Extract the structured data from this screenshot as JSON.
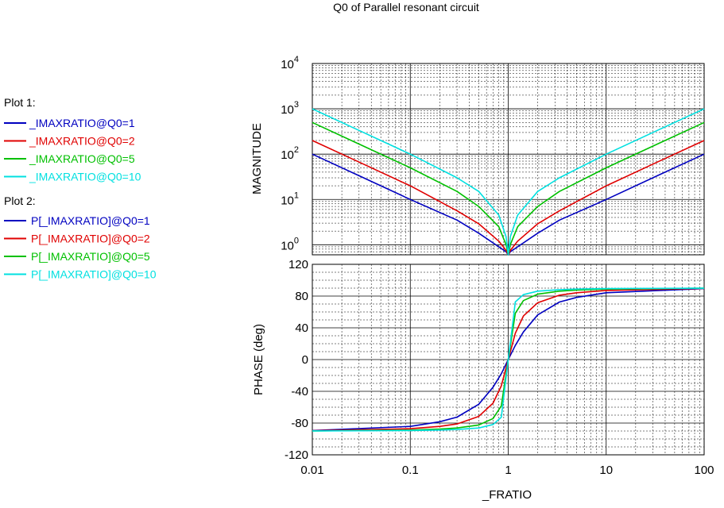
{
  "chart_data": {
    "type": "line",
    "title": "Q0 of Parallel resonant circuit",
    "xlabel": "_FRATIO",
    "x_scale": "log",
    "xlim": [
      0.01,
      100
    ],
    "x_ticks": [
      "0.01",
      "0.1",
      "1",
      "10",
      "100"
    ],
    "grid": true,
    "legend_placement": "left",
    "panels": [
      {
        "name": "magnitude",
        "ylabel": "MAGNITUDE",
        "y_scale": "log",
        "ylim": [
          0.6,
          10000
        ],
        "y_ticks": [
          {
            "base": "10",
            "exp": "0"
          },
          {
            "base": "10",
            "exp": "1"
          },
          {
            "base": "10",
            "exp": "2"
          },
          {
            "base": "10",
            "exp": "3"
          },
          {
            "base": "10",
            "exp": "4"
          }
        ],
        "legend_title": "Plot 1:",
        "series": [
          {
            "name": "_IMAXRATIO@Q0=1",
            "color": "#0000c0",
            "x": [
              0.01,
              0.03,
              0.1,
              0.3,
              0.5,
              0.8,
              0.95,
              1,
              1.05,
              1.25,
              2,
              3.33,
              10,
              33.3,
              100
            ],
            "y": [
              100,
              33.3,
              10,
              3.5,
              1.8,
              0.9,
              0.7,
              0.6,
              0.7,
              0.9,
              1.8,
              3.5,
              10,
              33.3,
              100
            ]
          },
          {
            "name": "_IMAXRATIO@Q0=2",
            "color": "#e00000",
            "x": [
              0.01,
              0.03,
              0.1,
              0.3,
              0.5,
              0.8,
              0.95,
              1,
              1.05,
              1.25,
              2,
              3.33,
              10,
              33.3,
              100
            ],
            "y": [
              200,
              66.6,
              20,
              5.6,
              2.9,
              1.2,
              0.75,
              0.6,
              0.75,
              1.2,
              2.9,
              5.6,
              20,
              66.6,
              200
            ]
          },
          {
            "name": "_IMAXRATIO@Q0=5",
            "color": "#00c000",
            "x": [
              0.01,
              0.03,
              0.1,
              0.3,
              0.5,
              0.8,
              0.95,
              1,
              1.05,
              1.25,
              2,
              3.33,
              10,
              33.3,
              100
            ],
            "y": [
              500,
              167,
              50,
              15,
              7,
              2.5,
              1,
              0.6,
              1,
              2.5,
              7,
              15,
              50,
              167,
              500
            ]
          },
          {
            "name": "_IMAXRATIO@Q0=10",
            "color": "#00e0e0",
            "x": [
              0.01,
              0.03,
              0.1,
              0.3,
              0.5,
              0.8,
              0.95,
              1,
              1.05,
              1.25,
              2,
              3.33,
              10,
              33.3,
              100
            ],
            "y": [
              1000,
              333,
              100,
              30,
              15,
              4.5,
              1.5,
              0.6,
              1.5,
              4.5,
              15,
              30,
              100,
              333,
              1000
            ]
          }
        ]
      },
      {
        "name": "phase",
        "ylabel": "PHASE  (deg)",
        "y_scale": "linear",
        "ylim": [
          -120,
          120
        ],
        "y_ticks": [
          "120",
          "80",
          "40",
          "0",
          "-40",
          "-80",
          "-120"
        ],
        "legend_title": "Plot 2:",
        "series": [
          {
            "name": "P[_IMAXRATIO]@Q0=1",
            "color": "#0000c0",
            "x": [
              0.01,
              0.1,
              0.2,
              0.3,
              0.5,
              0.7,
              0.85,
              1,
              1.18,
              1.43,
              2,
              3.33,
              5,
              10,
              100
            ],
            "y": [
              -89.4,
              -84.2,
              -78.3,
              -72.5,
              -56.3,
              -34.8,
              -17.8,
              0,
              17.8,
              34.8,
              56.3,
              72.5,
              78.3,
              84.2,
              89.4
            ]
          },
          {
            "name": "P[_IMAXRATIO]@Q0=2",
            "color": "#e00000",
            "x": [
              0.01,
              0.1,
              0.2,
              0.3,
              0.5,
              0.7,
              0.85,
              1,
              1.18,
              1.43,
              2,
              3.33,
              5,
              10,
              100
            ],
            "y": [
              -89.7,
              -87.1,
              -84.2,
              -81.1,
              -71.6,
              -54.9,
              -33.1,
              0,
              33.1,
              54.9,
              71.6,
              81.1,
              84.2,
              87.1,
              89.7
            ]
          },
          {
            "name": "P[_IMAXRATIO]@Q0=5",
            "color": "#00c000",
            "x": [
              0.01,
              0.1,
              0.2,
              0.3,
              0.5,
              0.7,
              0.85,
              1,
              1.18,
              1.43,
              2,
              3.33,
              5,
              10,
              100
            ],
            "y": [
              -89.9,
              -88.8,
              -87.6,
              -86.2,
              -82.4,
              -74.3,
              -58.3,
              0,
              58.3,
              74.3,
              82.4,
              86.2,
              87.6,
              88.8,
              89.9
            ]
          },
          {
            "name": "P[_IMAXRATIO]@Q0=10",
            "color": "#00e0e0",
            "x": [
              0.01,
              0.1,
              0.2,
              0.3,
              0.5,
              0.7,
              0.85,
              1,
              1.18,
              1.43,
              2,
              3.33,
              5,
              10,
              100
            ],
            "y": [
              -89.9,
              -89.4,
              -88.8,
              -88.1,
              -86.2,
              -81.8,
              -72.6,
              0,
              72.6,
              81.8,
              86.2,
              88.1,
              88.8,
              89.4,
              89.9
            ]
          }
        ]
      }
    ]
  }
}
